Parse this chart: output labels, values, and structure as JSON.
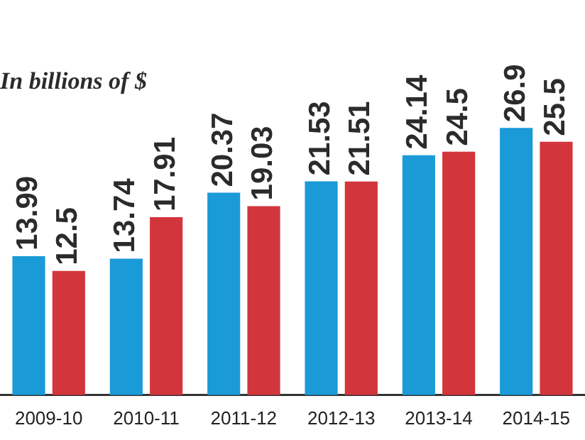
{
  "chart_data": {
    "type": "bar",
    "title": "In billions of $",
    "categories": [
      "2009-10",
      "2010-11",
      "2011-12",
      "2012-13",
      "2013-14",
      "2014-15"
    ],
    "series": [
      {
        "color": "#1b9ad8",
        "values": [
          13.99,
          13.74,
          20.37,
          21.53,
          24.14,
          26.9
        ]
      },
      {
        "color": "#d2353c",
        "values": [
          12.5,
          17.91,
          19.03,
          21.51,
          24.5,
          25.5
        ]
      }
    ],
    "data_labels": true,
    "grid": false,
    "legend": false,
    "tick_labels": "x"
  }
}
